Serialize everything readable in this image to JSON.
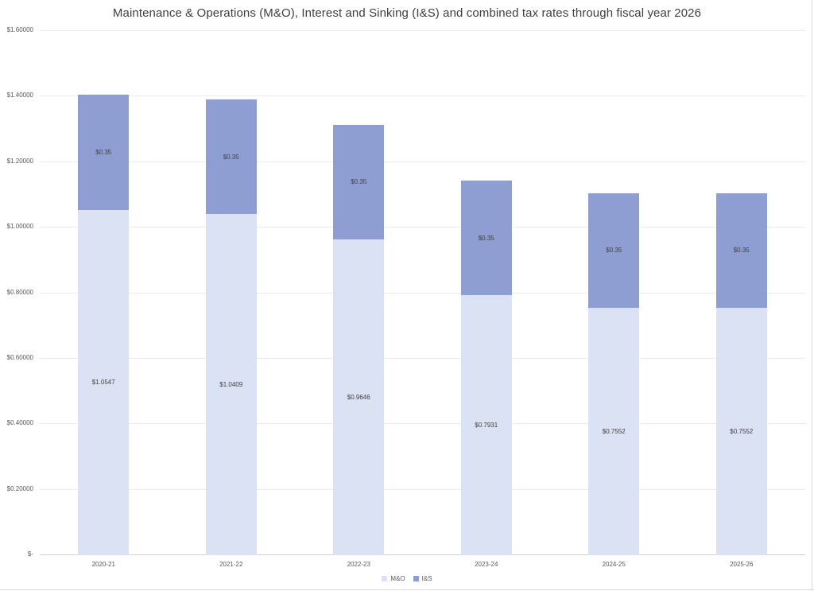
{
  "chart_data": {
    "type": "bar",
    "stacked": true,
    "title": "Maintenance & Operations (M&O), Interest and Sinking (I&S) and combined tax rates through fiscal year 2026",
    "categories": [
      "2020-21",
      "2021-22",
      "2022-23",
      "2023-24",
      "2024-25",
      "2025-26"
    ],
    "series": [
      {
        "name": "M&O",
        "color": "#dbe2f3",
        "values": [
          1.0547,
          1.0409,
          0.9646,
          0.7931,
          0.7552,
          0.7552
        ],
        "labels": [
          "$1.0547",
          "$1.0409",
          "$0.9646",
          "$0.7931",
          "$0.7552",
          "$0.7552"
        ]
      },
      {
        "name": "I&S",
        "color": "#8e9ed2",
        "values": [
          0.35,
          0.35,
          0.35,
          0.35,
          0.35,
          0.35
        ],
        "labels": [
          "$0.35",
          "$0.35",
          "$0.35",
          "$0.35",
          "$0.35",
          "$0.35"
        ]
      }
    ],
    "ylim": [
      0,
      1.6
    ],
    "yticks": [
      {
        "value": 0,
        "label": "$-"
      },
      {
        "value": 0.2,
        "label": "$0.20000"
      },
      {
        "value": 0.4,
        "label": "$0.40000"
      },
      {
        "value": 0.6,
        "label": "$0.60000"
      },
      {
        "value": 0.8,
        "label": "$0.80000"
      },
      {
        "value": 1.0,
        "label": "$1.00000"
      },
      {
        "value": 1.2,
        "label": "$1.20000"
      },
      {
        "value": 1.4,
        "label": "$1.40000"
      },
      {
        "value": 1.6,
        "label": "$1.60000"
      }
    ],
    "legend_position": "bottom",
    "grid": "horizontal",
    "totals": [
      1.4047,
      1.3909,
      1.3146,
      1.1431,
      1.1052,
      1.1052
    ]
  }
}
